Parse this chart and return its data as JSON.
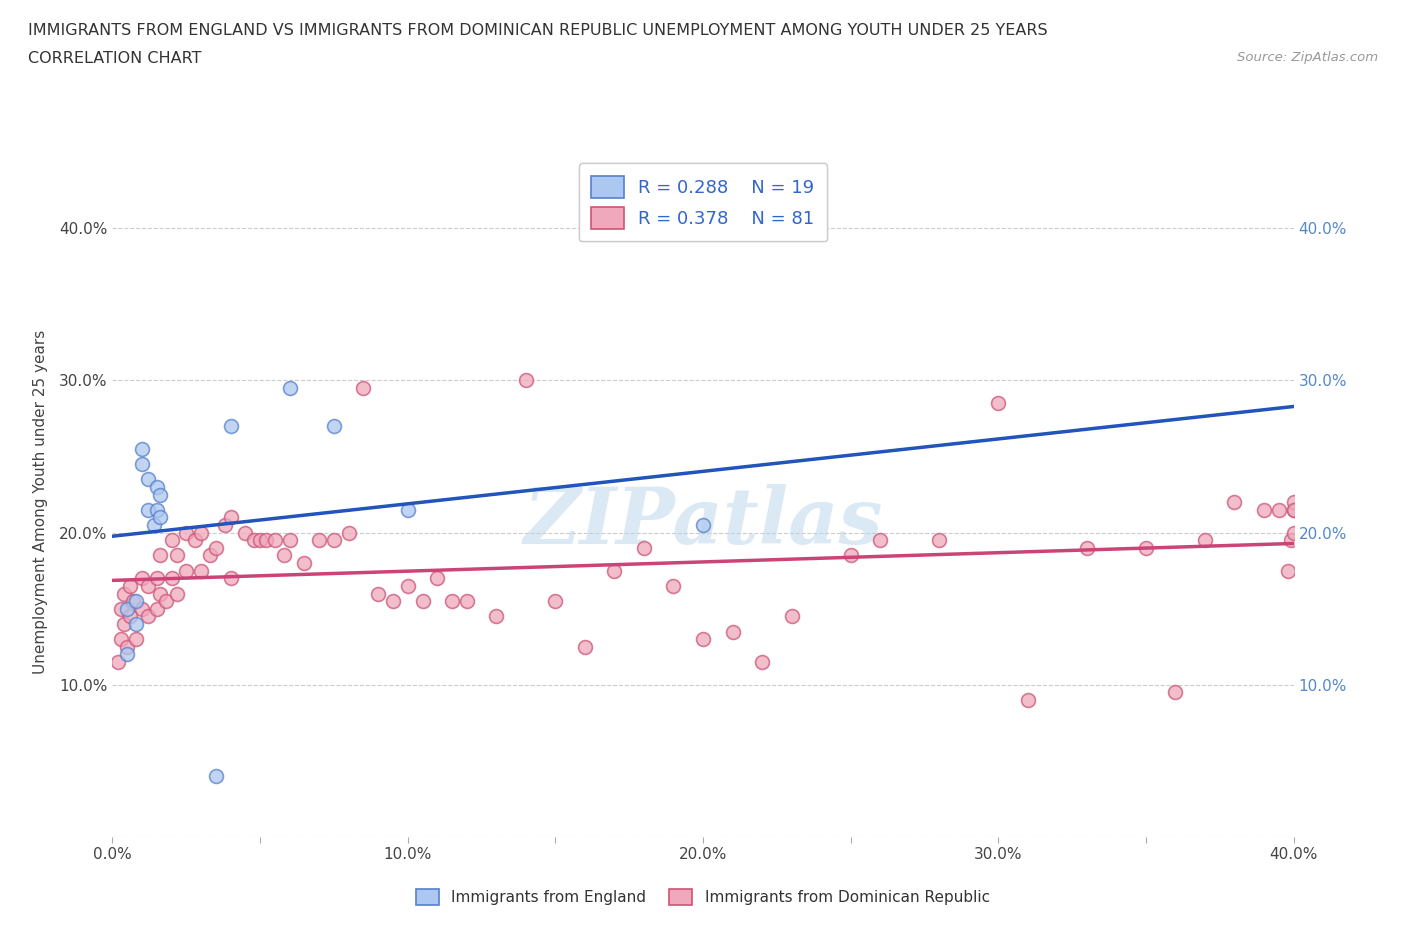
{
  "title_line1": "IMMIGRANTS FROM ENGLAND VS IMMIGRANTS FROM DOMINICAN REPUBLIC UNEMPLOYMENT AMONG YOUTH UNDER 25 YEARS",
  "title_line2": "CORRELATION CHART",
  "source_text": "Source: ZipAtlas.com",
  "ylabel": "Unemployment Among Youth under 25 years",
  "xmin": 0.0,
  "xmax": 0.4,
  "ymin": 0.0,
  "ymax": 0.44,
  "england_color": "#adc8f0",
  "england_edge_color": "#5580cc",
  "dr_color": "#f0a8bc",
  "dr_edge_color": "#cc5577",
  "england_R": 0.288,
  "england_N": 19,
  "dr_R": 0.378,
  "dr_N": 81,
  "england_line_color": "#2255bb",
  "dr_line_color": "#cc4477",
  "watermark_text": "ZIPatlas",
  "legend_label_england": "Immigrants from England",
  "legend_label_dr": "Immigrants from Dominican Republic",
  "england_x": [
    0.005,
    0.005,
    0.008,
    0.008,
    0.01,
    0.01,
    0.012,
    0.012,
    0.014,
    0.015,
    0.015,
    0.016,
    0.016,
    0.04,
    0.06,
    0.075,
    0.1,
    0.035,
    0.2
  ],
  "england_y": [
    0.12,
    0.15,
    0.14,
    0.155,
    0.245,
    0.255,
    0.215,
    0.235,
    0.205,
    0.215,
    0.23,
    0.21,
    0.225,
    0.27,
    0.295,
    0.27,
    0.215,
    0.04,
    0.205
  ],
  "dr_x": [
    0.002,
    0.003,
    0.003,
    0.004,
    0.004,
    0.005,
    0.006,
    0.006,
    0.007,
    0.008,
    0.01,
    0.01,
    0.012,
    0.012,
    0.015,
    0.015,
    0.016,
    0.016,
    0.018,
    0.02,
    0.02,
    0.022,
    0.022,
    0.025,
    0.025,
    0.028,
    0.03,
    0.03,
    0.033,
    0.035,
    0.038,
    0.04,
    0.04,
    0.045,
    0.048,
    0.05,
    0.052,
    0.055,
    0.058,
    0.06,
    0.065,
    0.07,
    0.075,
    0.08,
    0.085,
    0.09,
    0.095,
    0.1,
    0.105,
    0.11,
    0.115,
    0.12,
    0.13,
    0.14,
    0.15,
    0.16,
    0.17,
    0.18,
    0.19,
    0.2,
    0.21,
    0.22,
    0.23,
    0.25,
    0.26,
    0.28,
    0.3,
    0.31,
    0.33,
    0.35,
    0.36,
    0.37,
    0.38,
    0.39,
    0.395,
    0.398,
    0.399,
    0.4,
    0.4,
    0.4,
    0.4
  ],
  "dr_y": [
    0.115,
    0.13,
    0.15,
    0.14,
    0.16,
    0.125,
    0.145,
    0.165,
    0.155,
    0.13,
    0.15,
    0.17,
    0.145,
    0.165,
    0.15,
    0.17,
    0.16,
    0.185,
    0.155,
    0.17,
    0.195,
    0.16,
    0.185,
    0.175,
    0.2,
    0.195,
    0.175,
    0.2,
    0.185,
    0.19,
    0.205,
    0.17,
    0.21,
    0.2,
    0.195,
    0.195,
    0.195,
    0.195,
    0.185,
    0.195,
    0.18,
    0.195,
    0.195,
    0.2,
    0.295,
    0.16,
    0.155,
    0.165,
    0.155,
    0.17,
    0.155,
    0.155,
    0.145,
    0.3,
    0.155,
    0.125,
    0.175,
    0.19,
    0.165,
    0.13,
    0.135,
    0.115,
    0.145,
    0.185,
    0.195,
    0.195,
    0.285,
    0.09,
    0.19,
    0.19,
    0.095,
    0.195,
    0.22,
    0.215,
    0.215,
    0.175,
    0.195,
    0.215,
    0.22,
    0.2,
    0.215
  ],
  "ytick_values": [
    0.0,
    0.1,
    0.2,
    0.3,
    0.4
  ],
  "ytick_labels_left": [
    "",
    "10.0%",
    "20.0%",
    "30.0%",
    "40.0%"
  ],
  "ytick_labels_right": [
    "",
    "10.0%",
    "20.0%",
    "30.0%",
    "40.0%"
  ],
  "xtick_values": [
    0.0,
    0.05,
    0.1,
    0.15,
    0.2,
    0.25,
    0.3,
    0.35,
    0.4
  ],
  "xtick_labels": [
    "0.0%",
    "",
    "10.0%",
    "",
    "20.0%",
    "",
    "30.0%",
    "",
    "40.0%"
  ],
  "grid_color": "#cccccc",
  "bg_color": "#ffffff",
  "marker_size": 100
}
